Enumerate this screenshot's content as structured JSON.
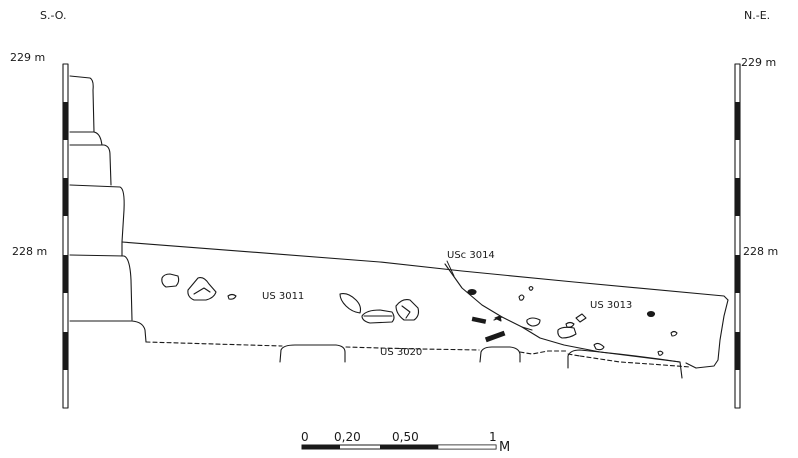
{
  "orientation": {
    "left": "S.-O.",
    "right": "N.-E."
  },
  "elevations": {
    "left_upper": "229 m",
    "left_lower": "228 m",
    "right_upper": "229 m",
    "right_lower": "228 m"
  },
  "units": {
    "us3011": "US 3011",
    "usc3014": "USc 3014",
    "us3013": "US 3013",
    "us3020": "US 3020"
  },
  "scale_bar": {
    "ticks": [
      "0",
      "0,20",
      "0,50",
      "1"
    ],
    "unit": "M"
  }
}
